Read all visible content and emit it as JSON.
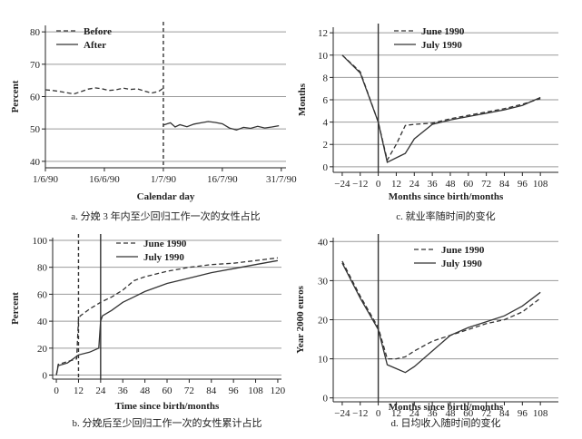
{
  "chart_data": [
    {
      "id": "a",
      "type": "line",
      "caption": "a. 分娩 3 年内至少回归工作一次的女性占比",
      "xlabel": "Calendar day",
      "ylabel": "Percent",
      "ylim": [
        38,
        82
      ],
      "yticks": [
        40,
        50,
        60,
        70,
        80
      ],
      "xlim": [
        0,
        102
      ],
      "xticks": [
        {
          "v": 0,
          "label": "1/6/90"
        },
        {
          "v": 25,
          "label": "16/6/90"
        },
        {
          "v": 50,
          "label": "1/7/90"
        },
        {
          "v": 75,
          "label": "16/7/90"
        },
        {
          "v": 100,
          "label": "31/7/90"
        }
      ],
      "vline": 50,
      "legend": [
        "Before",
        "After"
      ],
      "series": [
        {
          "name": "Before",
          "dash": true,
          "x": [
            0,
            3,
            6,
            9,
            12,
            15,
            18,
            21,
            24,
            27,
            30,
            33,
            36,
            39,
            42,
            45,
            48,
            50
          ],
          "y": [
            62.1,
            61.9,
            61.6,
            61.2,
            60.8,
            61.5,
            62.3,
            62.7,
            62.4,
            61.9,
            62.1,
            62.6,
            62.2,
            62.4,
            61.7,
            61.1,
            61.6,
            62.6
          ]
        },
        {
          "name": "After",
          "dash": false,
          "x": [
            50,
            53,
            55,
            57,
            60,
            63,
            66,
            69,
            72,
            75,
            78,
            81,
            84,
            87,
            90,
            93,
            96,
            99
          ],
          "y": [
            51.2,
            51.9,
            50.6,
            51.3,
            50.7,
            51.5,
            51.9,
            52.3,
            52.0,
            51.6,
            50.3,
            49.7,
            50.5,
            50.2,
            50.8,
            50.3,
            50.6,
            51.0
          ]
        }
      ]
    },
    {
      "id": "c",
      "type": "line",
      "caption": "c. 就业率随时间的变化",
      "xlabel": "Months since birth/months",
      "ylabel": "Months",
      "ylim": [
        -0.5,
        12.5
      ],
      "yticks": [
        0,
        2,
        4,
        6,
        8,
        10,
        12
      ],
      "xlim": [
        -30,
        120
      ],
      "xticks": [
        {
          "v": -24,
          "label": "−24"
        },
        {
          "v": -12,
          "label": "−12"
        },
        {
          "v": 0,
          "label": "0"
        },
        {
          "v": 12,
          "label": "12"
        },
        {
          "v": 24,
          "label": "24"
        },
        {
          "v": 36,
          "label": "36"
        },
        {
          "v": 48,
          "label": "48"
        },
        {
          "v": 60,
          "label": "60"
        },
        {
          "v": 72,
          "label": "72"
        },
        {
          "v": 84,
          "label": "84"
        },
        {
          "v": 96,
          "label": "96"
        },
        {
          "v": 108,
          "label": "108"
        }
      ],
      "vline": 0,
      "legend": [
        "June 1990",
        "July 1990"
      ],
      "series": [
        {
          "name": "June 1990",
          "dash": true,
          "x": [
            -24,
            -12,
            0,
            6,
            12,
            18,
            24,
            36,
            48,
            60,
            72,
            84,
            96,
            108
          ],
          "y": [
            10.0,
            8.5,
            4.0,
            0.6,
            2.0,
            3.7,
            3.8,
            3.9,
            4.3,
            4.6,
            4.9,
            5.2,
            5.6,
            6.1
          ]
        },
        {
          "name": "July 1990",
          "dash": false,
          "x": [
            -24,
            -12,
            0,
            6,
            12,
            18,
            24,
            36,
            48,
            60,
            72,
            84,
            96,
            108
          ],
          "y": [
            10.0,
            8.4,
            4.0,
            0.4,
            0.8,
            1.2,
            2.5,
            3.8,
            4.2,
            4.5,
            4.8,
            5.1,
            5.5,
            6.2
          ]
        }
      ]
    },
    {
      "id": "b",
      "type": "line",
      "caption": "b. 分娩后至少回归工作一次的女性累计占比",
      "xlabel": "Time since birth/months",
      "ylabel": "Percent",
      "ylim": [
        -3,
        102
      ],
      "yticks": [
        0,
        20,
        40,
        60,
        80,
        100
      ],
      "xlim": [
        -2,
        122
      ],
      "xticks": [
        {
          "v": 0,
          "label": "0"
        },
        {
          "v": 12,
          "label": "12"
        },
        {
          "v": 24,
          "label": "24"
        },
        {
          "v": 36,
          "label": "36"
        },
        {
          "v": 48,
          "label": "48"
        },
        {
          "v": 60,
          "label": "60"
        },
        {
          "v": 72,
          "label": "72"
        },
        {
          "v": 84,
          "label": "84"
        },
        {
          "v": 96,
          "label": "96"
        },
        {
          "v": 108,
          "label": "108"
        },
        {
          "v": 120,
          "label": "120"
        }
      ],
      "vlines": [
        {
          "x": 12,
          "dash": true
        },
        {
          "x": 24,
          "dash": false
        }
      ],
      "legend": [
        "June 1990",
        "July 1990"
      ],
      "series": [
        {
          "name": "June 1990",
          "dash": true,
          "x": [
            0,
            1,
            6,
            11,
            12,
            13,
            18,
            24,
            30,
            36,
            42,
            48,
            60,
            72,
            84,
            96,
            108,
            120
          ],
          "y": [
            0,
            8,
            10,
            12,
            42,
            44,
            49,
            54,
            58,
            63,
            70,
            73,
            77,
            80,
            82,
            83,
            85,
            87
          ]
        },
        {
          "name": "July 1990",
          "dash": false,
          "x": [
            0,
            1,
            6,
            12,
            18,
            23,
            24,
            25,
            30,
            36,
            42,
            48,
            60,
            72,
            84,
            96,
            108,
            120
          ],
          "y": [
            0,
            7,
            9,
            15,
            17,
            20,
            40,
            44,
            48,
            54,
            58,
            62,
            68,
            72,
            76,
            79,
            82,
            85
          ]
        }
      ]
    },
    {
      "id": "d",
      "type": "line",
      "caption": "d. 日均收入随时间的变化",
      "xlabel": "Months since birth/months",
      "ylabel": "Year 2000 euros",
      "ylim": [
        -1,
        41
      ],
      "yticks": [
        0,
        10,
        20,
        30,
        40
      ],
      "xlim": [
        -30,
        120
      ],
      "xticks": [
        {
          "v": -24,
          "label": "−24"
        },
        {
          "v": -12,
          "label": "−12"
        },
        {
          "v": 0,
          "label": "0"
        },
        {
          "v": 12,
          "label": "12"
        },
        {
          "v": 24,
          "label": "24"
        },
        {
          "v": 36,
          "label": "36"
        },
        {
          "v": 48,
          "label": "48"
        },
        {
          "v": 60,
          "label": "60"
        },
        {
          "v": 72,
          "label": "72"
        },
        {
          "v": 84,
          "label": "84"
        },
        {
          "v": 96,
          "label": "96"
        },
        {
          "v": 108,
          "label": "108"
        }
      ],
      "vline": 0,
      "legend": [
        "June 1990",
        "July 1990"
      ],
      "series": [
        {
          "name": "June 1990",
          "dash": true,
          "x": [
            -24,
            -12,
            0,
            6,
            12,
            18,
            24,
            36,
            48,
            60,
            72,
            84,
            96,
            108
          ],
          "y": [
            35,
            26,
            18,
            10,
            10,
            10.5,
            12,
            14.5,
            16,
            17.5,
            19,
            20,
            22,
            25.5
          ]
        },
        {
          "name": "July 1990",
          "dash": false,
          "x": [
            -24,
            -12,
            0,
            6,
            12,
            18,
            24,
            36,
            48,
            60,
            72,
            84,
            96,
            108
          ],
          "y": [
            34.5,
            25.5,
            17.5,
            8.5,
            7.5,
            6.5,
            8,
            12,
            16,
            18,
            19.5,
            21,
            23.5,
            27
          ]
        }
      ]
    }
  ]
}
